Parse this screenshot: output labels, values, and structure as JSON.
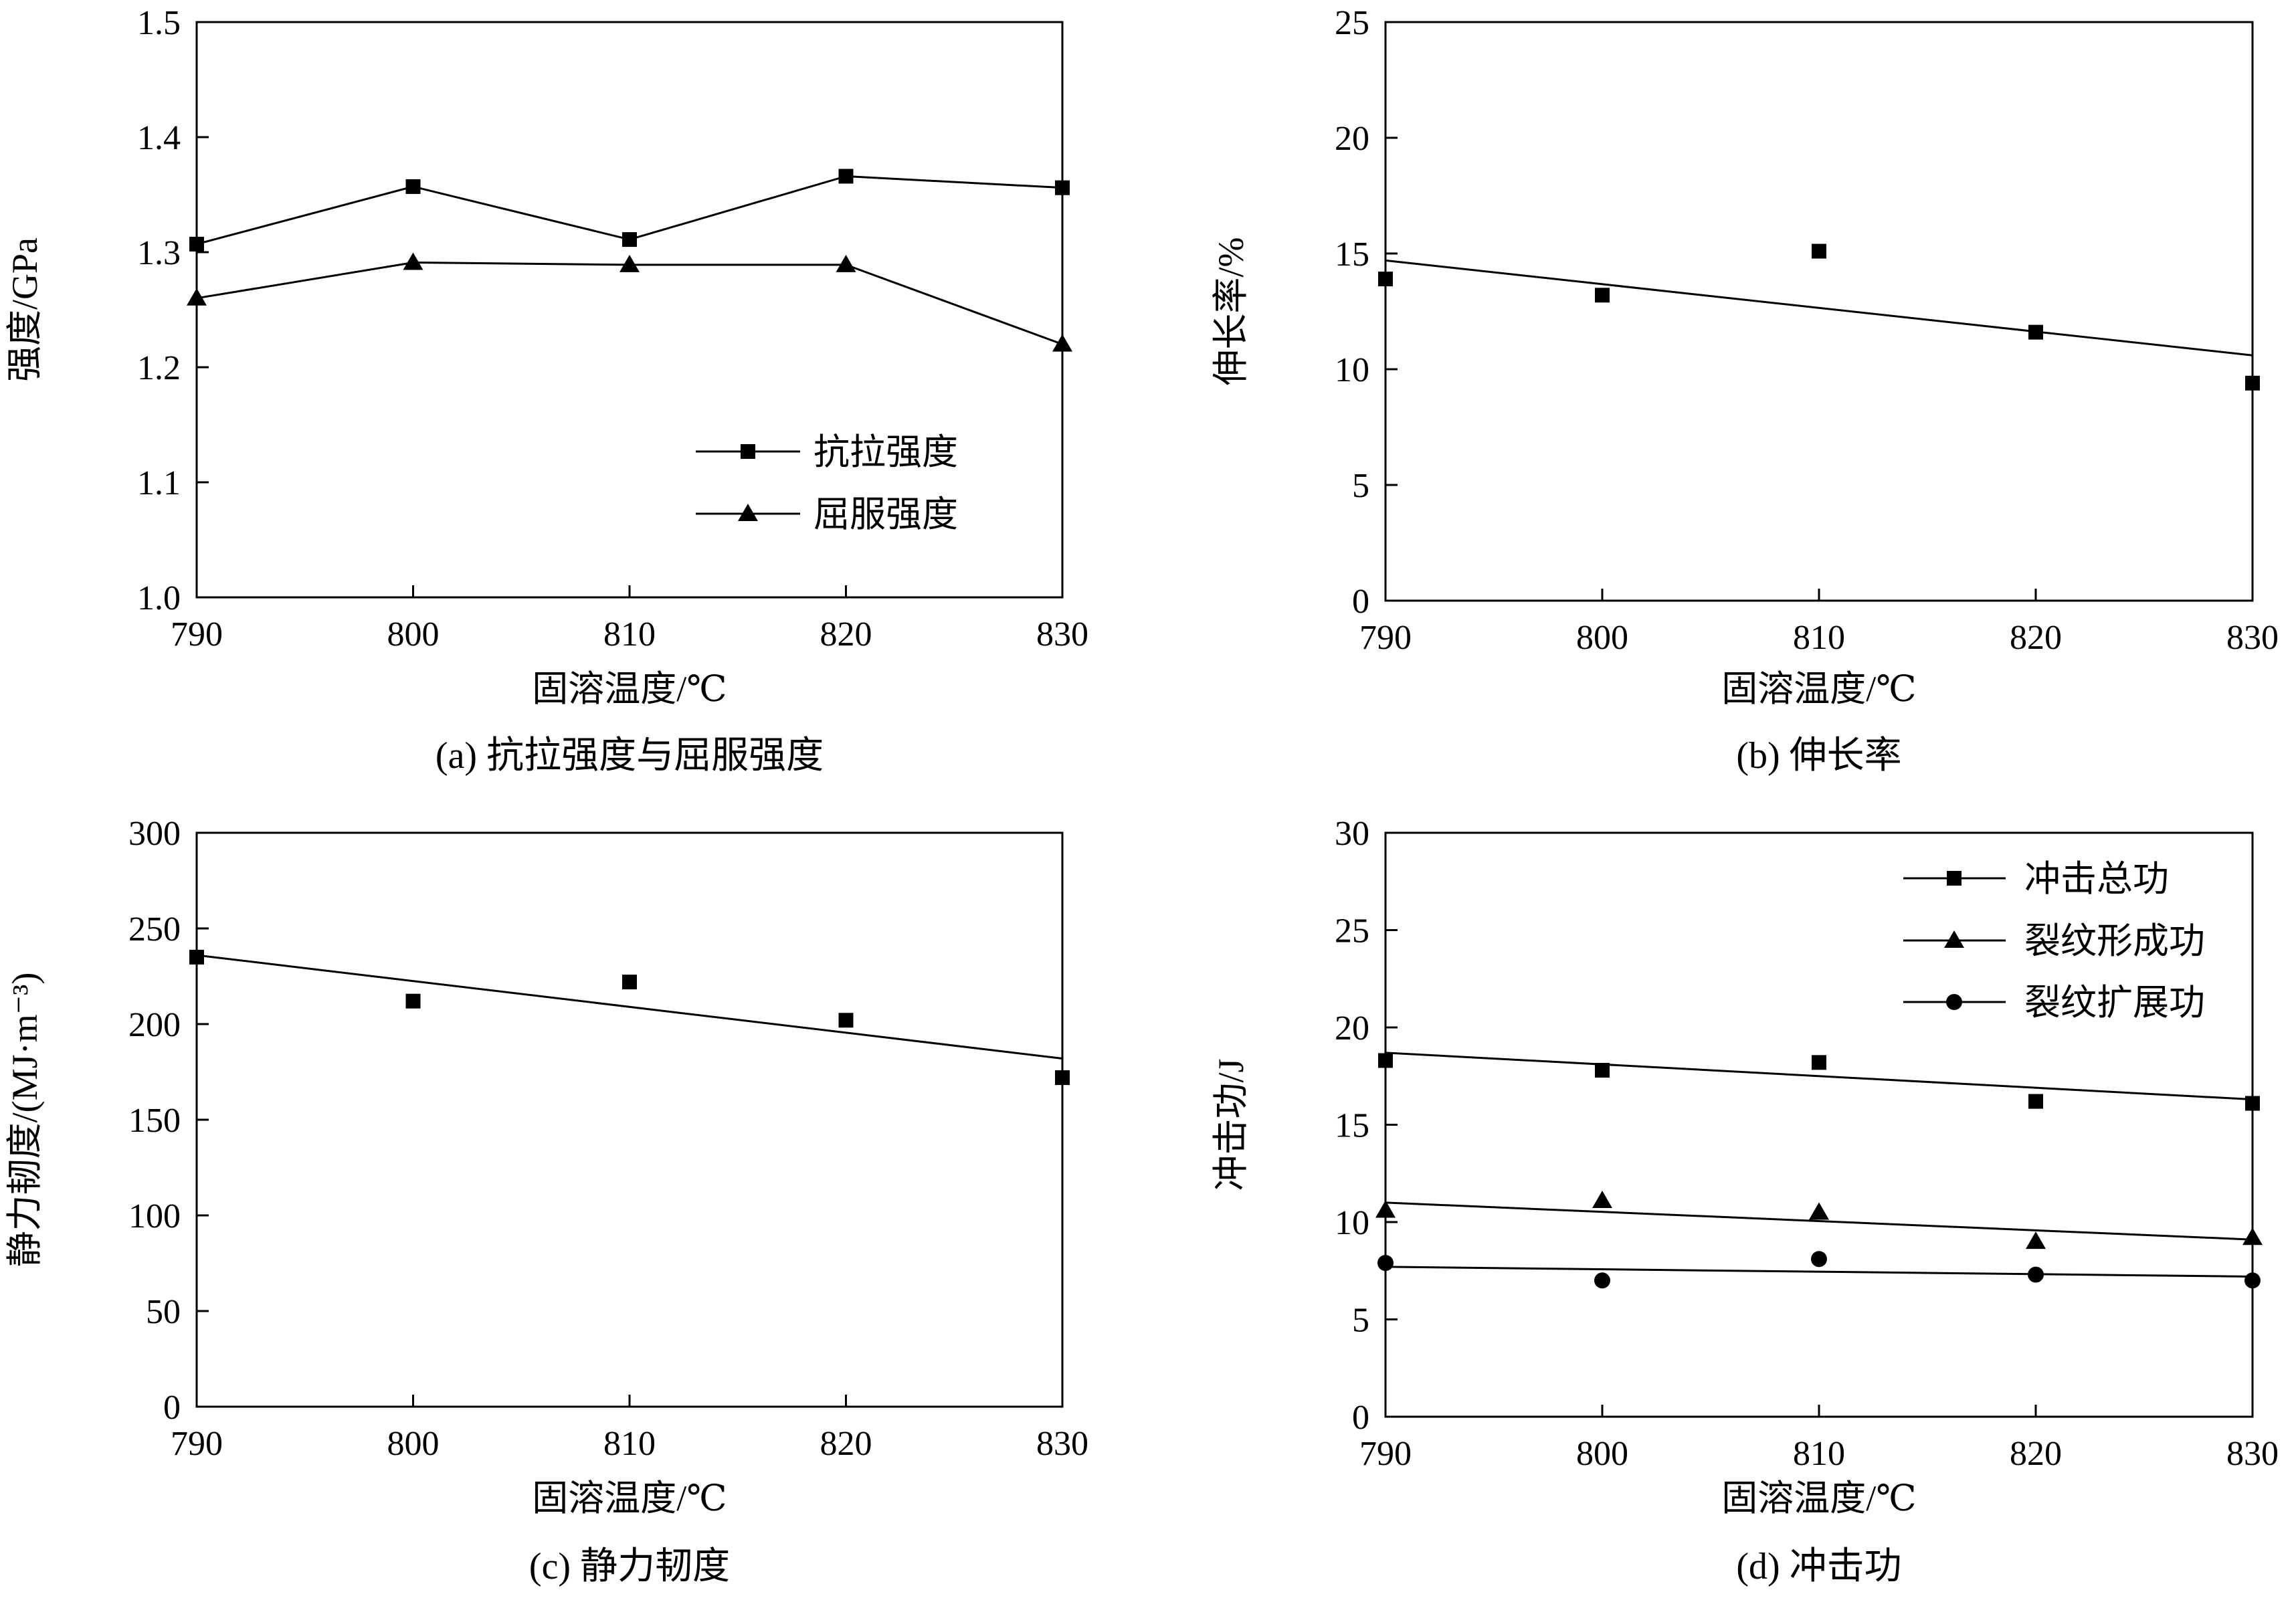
{
  "chart_data": [
    {
      "id": "a",
      "type": "line",
      "caption": "(a) 抗拉强度与屈服强度",
      "xlabel": "固溶温度/℃",
      "ylabel": "强度/GPa",
      "x": [
        790,
        800,
        810,
        820,
        830
      ],
      "xlim": [
        790,
        830
      ],
      "ylim": [
        1.0,
        1.5
      ],
      "xticks": [
        "790",
        "800",
        "810",
        "820",
        "830"
      ],
      "yticks": [
        "1.0",
        "1.1",
        "1.2",
        "1.3",
        "1.4",
        "1.5"
      ],
      "legend_position": "center-right",
      "series": [
        {
          "name": "抗拉强度",
          "marker": "square",
          "connect": true,
          "values": [
            1.307,
            1.357,
            1.311,
            1.366,
            1.356
          ]
        },
        {
          "name": "屈服强度",
          "marker": "triangle",
          "connect": true,
          "values": [
            1.26,
            1.291,
            1.289,
            1.289,
            1.22
          ]
        }
      ]
    },
    {
      "id": "b",
      "type": "scatter",
      "caption": "(b) 伸长率",
      "xlabel": "固溶温度/℃",
      "ylabel": "伸长率/%",
      "x": [
        790,
        800,
        810,
        820,
        830
      ],
      "xlim": [
        790,
        830
      ],
      "ylim": [
        0,
        25
      ],
      "xticks": [
        "790",
        "800",
        "810",
        "820",
        "830"
      ],
      "yticks": [
        "0",
        "5",
        "10",
        "15",
        "20",
        "25"
      ],
      "series": [
        {
          "name": "伸长率",
          "marker": "square",
          "values": [
            13.9,
            13.2,
            15.1,
            11.6,
            9.4
          ],
          "trend": [
            14.7,
            10.6
          ]
        }
      ]
    },
    {
      "id": "c",
      "type": "scatter",
      "caption": "(c) 静力韧度",
      "xlabel": "固溶温度/℃",
      "ylabel": "静力韧度/(MJ·m⁻³)",
      "x": [
        790,
        800,
        810,
        820,
        830
      ],
      "xlim": [
        790,
        830
      ],
      "ylim": [
        0,
        300
      ],
      "xticks": [
        "790",
        "800",
        "810",
        "820",
        "830"
      ],
      "yticks": [
        "0",
        "50",
        "100",
        "150",
        "200",
        "250",
        "300"
      ],
      "series": [
        {
          "name": "静力韧度",
          "marker": "square",
          "values": [
            235,
            212,
            222,
            202,
            172
          ],
          "trend": [
            236,
            182
          ]
        }
      ]
    },
    {
      "id": "d",
      "type": "scatter",
      "caption": "(d) 冲击功",
      "xlabel": "固溶温度/℃",
      "ylabel": "冲击功/J",
      "x": [
        790,
        800,
        810,
        820,
        830
      ],
      "xlim": [
        790,
        830
      ],
      "ylim": [
        0,
        30
      ],
      "xticks": [
        "790",
        "800",
        "810",
        "820",
        "830"
      ],
      "yticks": [
        "0",
        "5",
        "10",
        "15",
        "20",
        "25",
        "30"
      ],
      "legend_position": "top-right",
      "series": [
        {
          "name": "冲击总功",
          "marker": "square",
          "values": [
            18.3,
            17.8,
            18.2,
            16.2,
            16.1
          ],
          "trend": [
            18.7,
            16.3
          ]
        },
        {
          "name": "裂纹形成功",
          "marker": "triangle",
          "values": [
            10.6,
            11.1,
            10.5,
            9.0,
            9.2
          ],
          "trend": [
            11.0,
            9.1
          ]
        },
        {
          "name": "裂纹扩展功",
          "marker": "circle",
          "values": [
            7.9,
            7.0,
            8.1,
            7.3,
            7.0
          ],
          "trend": [
            7.7,
            7.2
          ]
        }
      ]
    }
  ]
}
